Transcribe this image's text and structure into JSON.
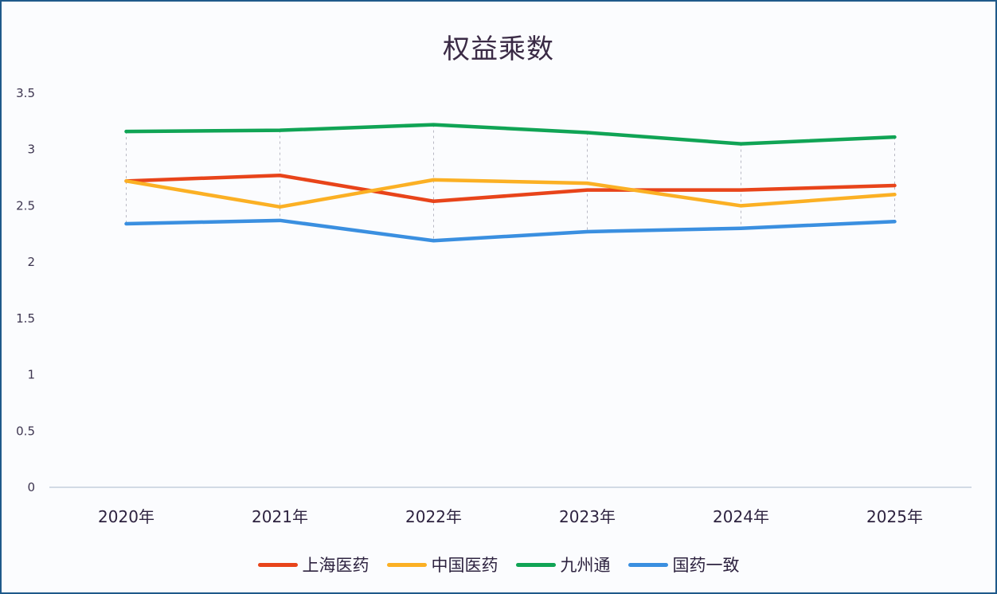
{
  "chart_data": {
    "type": "line",
    "title": "权益乘数",
    "xlabel": "",
    "ylabel": "",
    "categories": [
      "2020年",
      "2021年",
      "2022年",
      "2023年",
      "2024年",
      "2025年"
    ],
    "ylim": [
      0,
      3.5
    ],
    "yticks": [
      "0",
      "0.5",
      "1",
      "1.5",
      "2",
      "2.5",
      "3",
      "3.5"
    ],
    "grid": "dashed vertical drop lines at categories",
    "legend_position": "bottom",
    "series": [
      {
        "name": "上海医药",
        "color": "#e8441a",
        "values": [
          2.72,
          2.77,
          2.54,
          2.64,
          2.64,
          2.68
        ]
      },
      {
        "name": "中国医药",
        "color": "#fbb024",
        "values": [
          2.72,
          2.49,
          2.73,
          2.7,
          2.5,
          2.6
        ]
      },
      {
        "name": "九州通",
        "color": "#10a455",
        "values": [
          3.16,
          3.17,
          3.22,
          3.15,
          3.05,
          3.11
        ]
      },
      {
        "name": "国药一致",
        "color": "#3a8fe0",
        "values": [
          2.34,
          2.37,
          2.19,
          2.27,
          2.3,
          2.36
        ]
      }
    ]
  }
}
